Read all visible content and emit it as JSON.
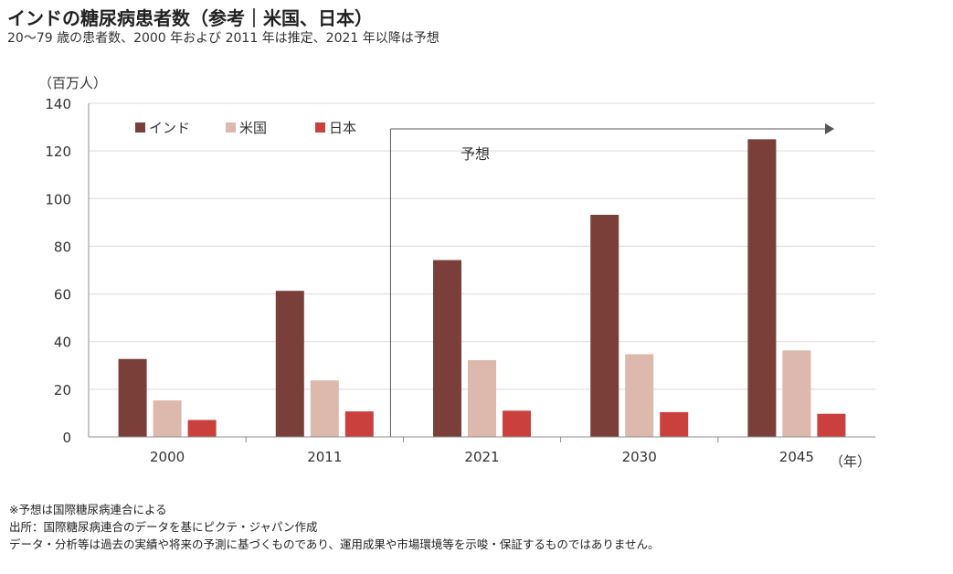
{
  "title": "インドの糖尿病患者数（参考｜米国、日本）",
  "subtitle": "20〜79 歳の患者数、2000 年および 2011 年は推定、2021 年以降は予想",
  "notes": [
    "※予想は国際糖尿病連合による",
    "出所：国際糖尿病連合のデータを基にピクテ・ジャパン作成",
    "データ・分析等は過去の実績や将来の予測に基づくものであり、運用成果や市場環境等を示唆・保証するものではありません。"
  ],
  "chart_data": {
    "type": "bar",
    "categories": [
      "2000",
      "2011",
      "2021",
      "2030",
      "2045"
    ],
    "series": [
      {
        "name": "インド",
        "color": "#7b3f3a",
        "values": [
          32.7,
          61.3,
          74.2,
          93.2,
          124.9
        ]
      },
      {
        "name": "米国",
        "color": "#ddb8ad",
        "values": [
          15.3,
          23.7,
          32.2,
          34.7,
          36.3
        ]
      },
      {
        "name": "日本",
        "color": "#c9403d",
        "values": [
          7.1,
          10.7,
          11.0,
          10.4,
          9.7
        ]
      }
    ],
    "ylabel": "（百万人）",
    "xlabel": "（年）",
    "ylim": [
      0,
      140
    ],
    "yticks": [
      0,
      20,
      40,
      60,
      80,
      100,
      120,
      140
    ],
    "grid": true,
    "legend_position": "top-left",
    "annotation": {
      "text": "予想",
      "from_category": "2021"
    }
  }
}
